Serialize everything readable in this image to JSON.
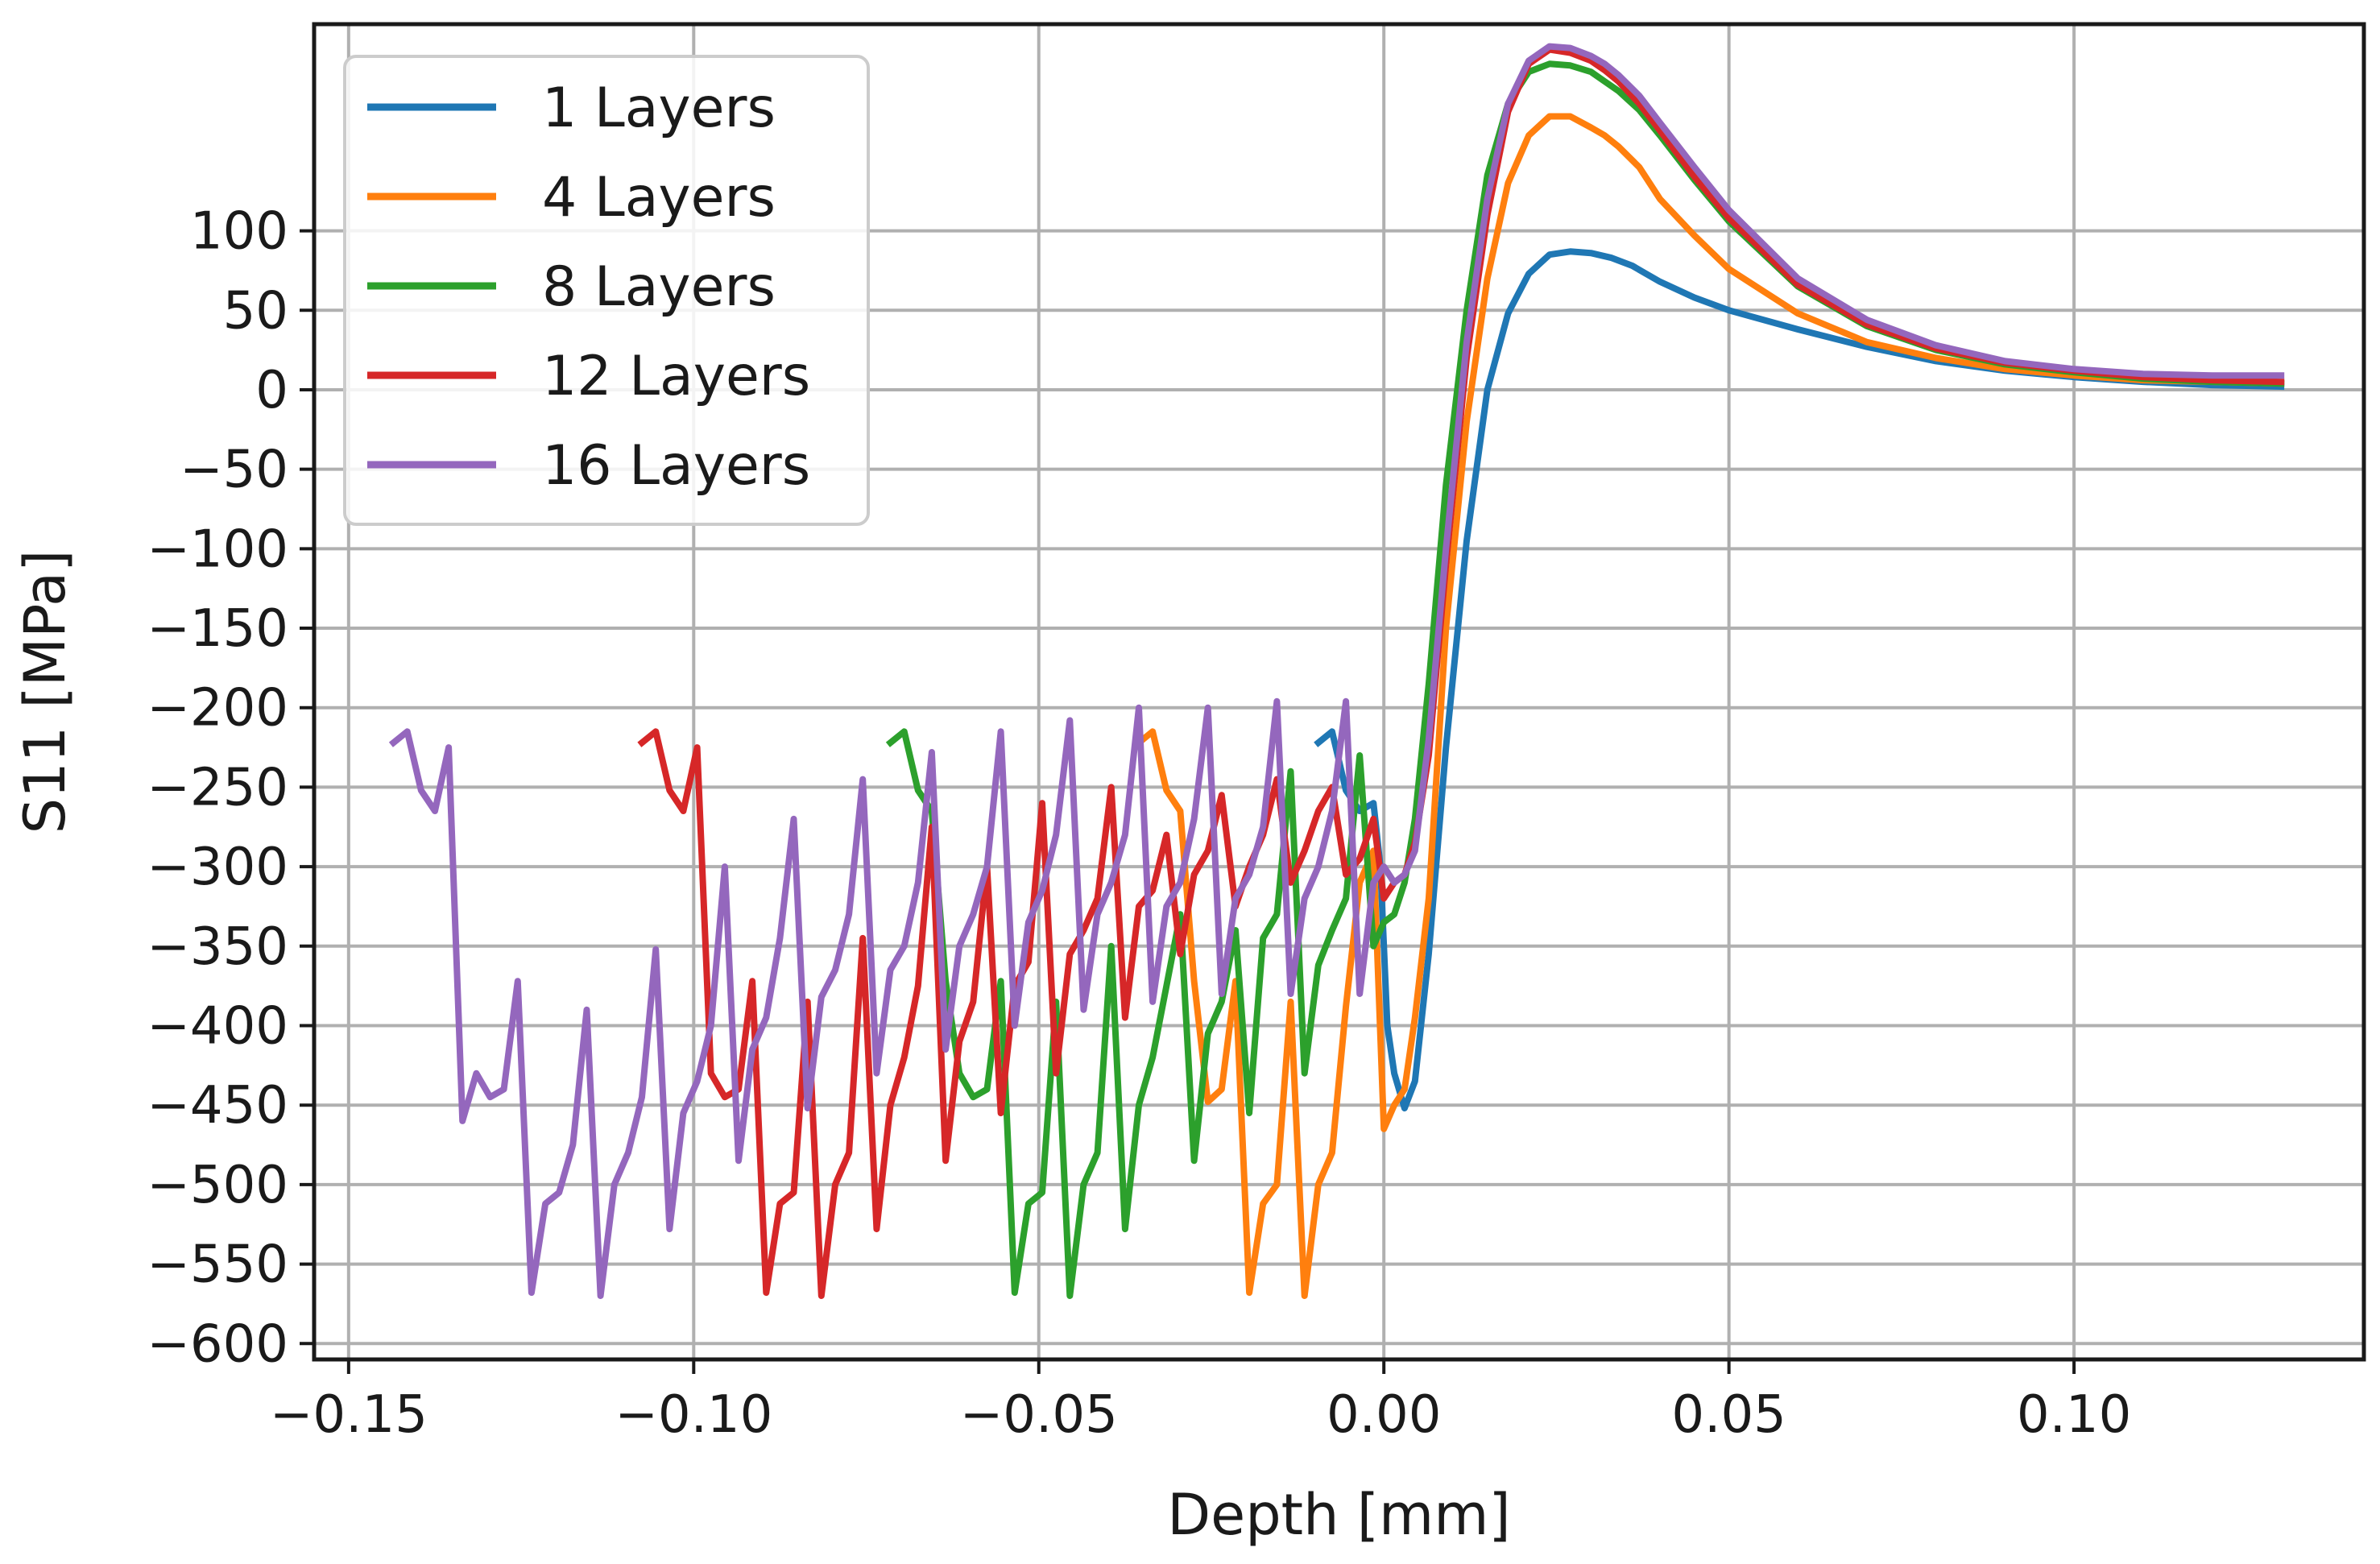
{
  "chart_data": {
    "type": "line",
    "title": "",
    "xlabel": "Depth [mm]",
    "ylabel": "S11 [MPa]",
    "xlim": [
      -0.155,
      0.142
    ],
    "ylim": [
      -610,
      230
    ],
    "xticks": [
      -0.15,
      -0.1,
      -0.05,
      0.0,
      0.05,
      0.1
    ],
    "xtick_labels": [
      "−0.15",
      "−0.10",
      "−0.05",
      "0.00",
      "0.05",
      "0.10"
    ],
    "yticks": [
      100,
      50,
      0,
      -50,
      -100,
      -150,
      -200,
      -250,
      -300,
      -350,
      -400,
      -450,
      -500,
      -550,
      -600
    ],
    "ytick_labels": [
      "100",
      "50",
      "0",
      "−50",
      "−100",
      "−150",
      "−200",
      "−250",
      "−300",
      "−350",
      "−400",
      "−450",
      "−500",
      "−550",
      "−600"
    ],
    "grid": true,
    "legend_position": "top-left",
    "series": [
      {
        "name": "1 Layers",
        "color": "#1f77b4",
        "x": [
          -0.0095,
          -0.0075,
          -0.0055,
          -0.0035,
          -0.0015,
          -0.0005,
          0.0005,
          0.0015,
          0.003,
          0.0045,
          0.0065,
          0.009,
          0.012,
          0.015,
          0.018,
          0.021,
          0.024,
          0.027,
          0.03,
          0.033,
          0.036,
          0.038,
          0.04,
          0.045,
          0.05,
          0.06,
          0.07,
          0.08,
          0.09,
          0.1,
          0.11,
          0.12,
          0.13
        ],
        "y": [
          -222,
          -215,
          -252,
          -265,
          -260,
          -300,
          -400,
          -430,
          -452,
          -435,
          -355,
          -225,
          -95,
          0,
          48,
          73,
          85,
          87,
          86,
          83,
          78,
          73,
          68,
          58,
          50,
          38,
          27,
          18,
          12,
          8,
          5,
          3,
          2
        ]
      },
      {
        "name": "4 Layers",
        "color": "#ff7f0e",
        "x": [
          -0.0355,
          -0.0335,
          -0.0315,
          -0.0295,
          -0.0275,
          -0.0255,
          -0.0235,
          -0.0215,
          -0.0195,
          -0.0175,
          -0.0155,
          -0.0135,
          -0.0115,
          -0.0095,
          -0.0075,
          -0.0055,
          -0.0035,
          -0.0015,
          0.0,
          0.0015,
          0.003,
          0.0045,
          0.0065,
          0.009,
          0.012,
          0.015,
          0.018,
          0.021,
          0.024,
          0.027,
          0.03,
          0.032,
          0.034,
          0.037,
          0.04,
          0.045,
          0.05,
          0.06,
          0.07,
          0.08,
          0.09,
          0.1,
          0.11,
          0.12,
          0.13
        ],
        "y": [
          -222,
          -215,
          -252,
          -265,
          -372,
          -448,
          -440,
          -372,
          -568,
          -512,
          -500,
          -385,
          -570,
          -500,
          -480,
          -388,
          -310,
          -290,
          -465,
          -450,
          -440,
          -395,
          -320,
          -150,
          -20,
          70,
          130,
          160,
          172,
          172,
          165,
          160,
          153,
          140,
          120,
          97,
          76,
          48,
          30,
          20,
          13,
          9,
          6,
          5,
          4
        ]
      },
      {
        "name": "8 Layers",
        "color": "#2ca02c",
        "x": [
          -0.0715,
          -0.0695,
          -0.0675,
          -0.0655,
          -0.0635,
          -0.0615,
          -0.0595,
          -0.0575,
          -0.0555,
          -0.0535,
          -0.0515,
          -0.0495,
          -0.0475,
          -0.0455,
          -0.0435,
          -0.0415,
          -0.0395,
          -0.0375,
          -0.0355,
          -0.0335,
          -0.0315,
          -0.0295,
          -0.0275,
          -0.0255,
          -0.0235,
          -0.0215,
          -0.0195,
          -0.0175,
          -0.0155,
          -0.0135,
          -0.0115,
          -0.0095,
          -0.0075,
          -0.0055,
          -0.0035,
          -0.0015,
          0.0,
          0.0015,
          0.003,
          0.0045,
          0.0065,
          0.009,
          0.012,
          0.015,
          0.018,
          0.021,
          0.024,
          0.027,
          0.03,
          0.032,
          0.034,
          0.037,
          0.04,
          0.045,
          0.05,
          0.06,
          0.07,
          0.08,
          0.09,
          0.1,
          0.11,
          0.12,
          0.13
        ],
        "y": [
          -222,
          -215,
          -252,
          -265,
          -372,
          -430,
          -445,
          -440,
          -372,
          -568,
          -512,
          -505,
          -385,
          -570,
          -500,
          -480,
          -350,
          -528,
          -450,
          -420,
          -375,
          -330,
          -485,
          -405,
          -385,
          -340,
          -455,
          -345,
          -330,
          -240,
          -430,
          -362,
          -340,
          -320,
          -230,
          -350,
          -335,
          -330,
          -310,
          -270,
          -185,
          -60,
          50,
          135,
          180,
          200,
          205,
          204,
          200,
          194,
          188,
          176,
          160,
          132,
          106,
          65,
          40,
          25,
          16,
          11,
          7,
          5,
          4
        ]
      },
      {
        "name": "12 Layers",
        "color": "#d62728",
        "x": [
          -0.1075,
          -0.1055,
          -0.1035,
          -0.1015,
          -0.0995,
          -0.0975,
          -0.0955,
          -0.0935,
          -0.0915,
          -0.0895,
          -0.0875,
          -0.0855,
          -0.0835,
          -0.0815,
          -0.0795,
          -0.0775,
          -0.0755,
          -0.0735,
          -0.0715,
          -0.0695,
          -0.0675,
          -0.0655,
          -0.0635,
          -0.0615,
          -0.0595,
          -0.0575,
          -0.0555,
          -0.0535,
          -0.0515,
          -0.0495,
          -0.0475,
          -0.0455,
          -0.0435,
          -0.0415,
          -0.0395,
          -0.0375,
          -0.0355,
          -0.0335,
          -0.0315,
          -0.0295,
          -0.0275,
          -0.0255,
          -0.0235,
          -0.0215,
          -0.0195,
          -0.0175,
          -0.0155,
          -0.0135,
          -0.0115,
          -0.0095,
          -0.0075,
          -0.0055,
          -0.0035,
          -0.0015,
          0.0,
          0.0015,
          0.003,
          0.0045,
          0.0065,
          0.009,
          0.012,
          0.015,
          0.018,
          0.021,
          0.024,
          0.027,
          0.03,
          0.032,
          0.034,
          0.037,
          0.04,
          0.045,
          0.05,
          0.06,
          0.07,
          0.08,
          0.09,
          0.1,
          0.11,
          0.12,
          0.13
        ],
        "y": [
          -222,
          -215,
          -252,
          -265,
          -225,
          -430,
          -445,
          -440,
          -372,
          -568,
          -512,
          -505,
          -385,
          -570,
          -500,
          -480,
          -345,
          -528,
          -450,
          -420,
          -375,
          -275,
          -485,
          -410,
          -385,
          -300,
          -455,
          -375,
          -360,
          -260,
          -430,
          -355,
          -340,
          -320,
          -250,
          -395,
          -325,
          -315,
          -280,
          -355,
          -305,
          -290,
          -255,
          -325,
          -300,
          -280,
          -245,
          -310,
          -290,
          -265,
          -250,
          -305,
          -295,
          -270,
          -320,
          -310,
          -305,
          -285,
          -230,
          -110,
          20,
          110,
          175,
          205,
          214,
          212,
          207,
          201,
          194,
          180,
          163,
          134,
          108,
          66,
          41,
          26,
          17,
          12,
          8,
          6,
          5
        ]
      },
      {
        "name": "16 Layers",
        "color": "#9467bd",
        "x": [
          -0.1435,
          -0.1415,
          -0.1395,
          -0.1375,
          -0.1355,
          -0.1335,
          -0.1315,
          -0.1295,
          -0.1275,
          -0.1255,
          -0.1235,
          -0.1215,
          -0.1195,
          -0.1175,
          -0.1155,
          -0.1135,
          -0.1115,
          -0.1095,
          -0.1075,
          -0.1055,
          -0.1035,
          -0.1015,
          -0.0995,
          -0.0975,
          -0.0955,
          -0.0935,
          -0.0915,
          -0.0895,
          -0.0875,
          -0.0855,
          -0.0835,
          -0.0815,
          -0.0795,
          -0.0775,
          -0.0755,
          -0.0735,
          -0.0715,
          -0.0695,
          -0.0675,
          -0.0655,
          -0.0635,
          -0.0615,
          -0.0595,
          -0.0575,
          -0.0555,
          -0.0535,
          -0.0515,
          -0.0495,
          -0.0475,
          -0.0455,
          -0.0435,
          -0.0415,
          -0.0395,
          -0.0375,
          -0.0355,
          -0.0335,
          -0.0315,
          -0.0295,
          -0.0275,
          -0.0255,
          -0.0235,
          -0.0215,
          -0.0195,
          -0.0175,
          -0.0155,
          -0.0135,
          -0.0115,
          -0.0095,
          -0.0075,
          -0.0055,
          -0.0035,
          -0.0015,
          0.0,
          0.0015,
          0.003,
          0.0045,
          0.0065,
          0.009,
          0.012,
          0.015,
          0.018,
          0.021,
          0.024,
          0.027,
          0.03,
          0.032,
          0.034,
          0.037,
          0.04,
          0.045,
          0.05,
          0.06,
          0.07,
          0.08,
          0.09,
          0.1,
          0.11,
          0.12,
          0.13
        ],
        "y": [
          -222,
          -215,
          -252,
          -265,
          -225,
          -460,
          -430,
          -445,
          -440,
          -372,
          -568,
          -512,
          -505,
          -475,
          -390,
          -570,
          -500,
          -480,
          -445,
          -352,
          -528,
          -455,
          -435,
          -400,
          -300,
          -485,
          -415,
          -395,
          -345,
          -270,
          -452,
          -382,
          -365,
          -330,
          -245,
          -430,
          -365,
          -350,
          -310,
          -228,
          -415,
          -350,
          -330,
          -300,
          -215,
          -400,
          -335,
          -315,
          -280,
          -208,
          -390,
          -330,
          -310,
          -280,
          -200,
          -385,
          -325,
          -310,
          -270,
          -200,
          -380,
          -320,
          -305,
          -275,
          -196,
          -380,
          -320,
          -300,
          -265,
          -196,
          -380,
          -310,
          -300,
          -310,
          -305,
          -290,
          -220,
          -100,
          30,
          120,
          180,
          207,
          216,
          215,
          210,
          205,
          198,
          185,
          168,
          140,
          113,
          70,
          44,
          28,
          18,
          13,
          10,
          9,
          9
        ]
      }
    ]
  }
}
